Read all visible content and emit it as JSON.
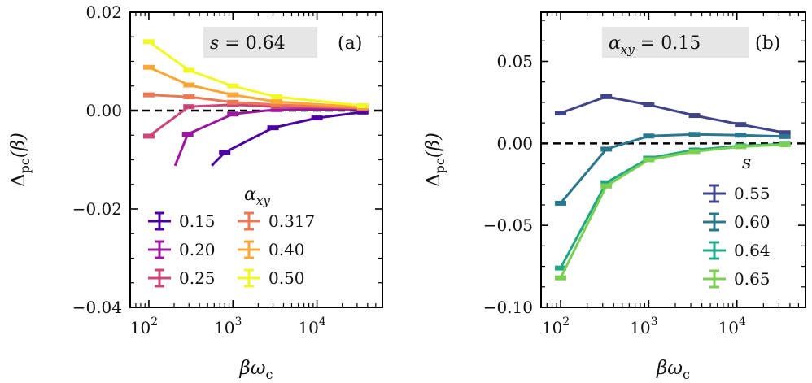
{
  "chart_data": [
    {
      "panel": "a",
      "type": "line",
      "xscale": "log",
      "xlim": [
        60,
        60000
      ],
      "ylim": [
        -0.04,
        0.02
      ],
      "yticks": [
        -0.04,
        -0.02,
        0.0,
        0.02
      ],
      "ytick_labels": [
        "−0.04",
        "−0.02",
        "0.00",
        "0.02"
      ],
      "xticks": [
        100,
        1000,
        10000
      ],
      "xtick_labels": [
        "10",
        "10",
        "10"
      ],
      "xtick_exponents": [
        "2",
        "3",
        "4"
      ],
      "xlabel": "βω",
      "xlabel_sub": "c",
      "ylabel": "Δ",
      "ylabel_sub": "pc",
      "ylabel_arg": "(β)",
      "reference_line": 0,
      "annotation": {
        "lhs": "s",
        "eq": " = 0.64",
        "tag": "(a)"
      },
      "legend": {
        "title": "α",
        "title_sub": "xy",
        "placement": "bottom",
        "columns": 2
      },
      "series": [
        {
          "name": "0.15",
          "color": "#4c02a1",
          "x": [
            800,
            3000,
            10000,
            35000
          ],
          "y": [
            -0.0085,
            -0.0035,
            -0.0015,
            -0.0003
          ],
          "x_offscale": 560,
          "y_offscale": -0.0112
        },
        {
          "name": "0.20",
          "color": "#9c179e",
          "x": [
            290,
            1000,
            3300,
            35000
          ],
          "y": [
            -0.0048,
            -0.0007,
            0.0002,
            0.0003
          ],
          "x_offscale": 205,
          "y_offscale": -0.0112
        },
        {
          "name": "0.25",
          "color": "#cc4778",
          "x": [
            100,
            300,
            1000,
            3300,
            35000
          ],
          "y": [
            -0.0052,
            0.0008,
            0.0012,
            0.0008,
            0.0005
          ]
        },
        {
          "name": "0.317",
          "color": "#ed7953",
          "x": [
            100,
            300,
            1000,
            3300,
            35000
          ],
          "y": [
            0.0032,
            0.0028,
            0.0017,
            0.0012,
            0.0005
          ]
        },
        {
          "name": "0.40",
          "color": "#fca636",
          "x": [
            100,
            300,
            1000,
            3300,
            35000
          ],
          "y": [
            0.0088,
            0.0052,
            0.0032,
            0.0018,
            0.0007
          ]
        },
        {
          "name": "0.50",
          "color": "#f0f921",
          "x": [
            100,
            300,
            1000,
            3300,
            35000
          ],
          "y": [
            0.014,
            0.0082,
            0.005,
            0.0028,
            0.001
          ]
        }
      ]
    },
    {
      "panel": "b",
      "type": "line",
      "xscale": "log",
      "xlim": [
        60,
        60000
      ],
      "ylim": [
        -0.1,
        0.08
      ],
      "yticks": [
        -0.1,
        -0.05,
        0.0,
        0.05
      ],
      "ytick_labels": [
        "−0.10",
        "−0.05",
        "0.00",
        "0.05"
      ],
      "xticks": [
        100,
        1000,
        10000
      ],
      "xtick_labels": [
        "10",
        "10",
        "10"
      ],
      "xtick_exponents": [
        "2",
        "3",
        "4"
      ],
      "xlabel": "βω",
      "xlabel_sub": "c",
      "ylabel": "Δ",
      "ylabel_sub": "pc",
      "ylabel_arg": "(β)",
      "reference_line": 0,
      "annotation": {
        "lhs": "α",
        "lhs_sub": "xy",
        "eq": " = 0.15",
        "tag": "(b)"
      },
      "legend": {
        "title": "s",
        "placement": "right",
        "columns": 1
      },
      "series": [
        {
          "name": "0.55",
          "color": "#414487",
          "x": [
            100,
            330,
            1000,
            3300,
            11000,
            35000
          ],
          "y": [
            0.0185,
            0.0285,
            0.0235,
            0.017,
            0.0115,
            0.0065
          ]
        },
        {
          "name": "0.60",
          "color": "#2a788e",
          "x": [
            100,
            330,
            1000,
            3300,
            11000,
            35000
          ],
          "y": [
            -0.0365,
            -0.0035,
            0.0045,
            0.0055,
            0.005,
            0.0042
          ]
        },
        {
          "name": "0.64",
          "color": "#22a884",
          "x": [
            100,
            330,
            1000,
            3300,
            11000,
            35000
          ],
          "y": [
            -0.076,
            -0.024,
            -0.009,
            -0.004,
            -0.0015,
            -0.0005
          ]
        },
        {
          "name": "0.65",
          "color": "#7ad151",
          "x": [
            100,
            330,
            1000,
            3300,
            11000,
            35000
          ],
          "y": [
            -0.082,
            -0.026,
            -0.01,
            -0.005,
            -0.002,
            -0.0008
          ]
        }
      ]
    }
  ]
}
